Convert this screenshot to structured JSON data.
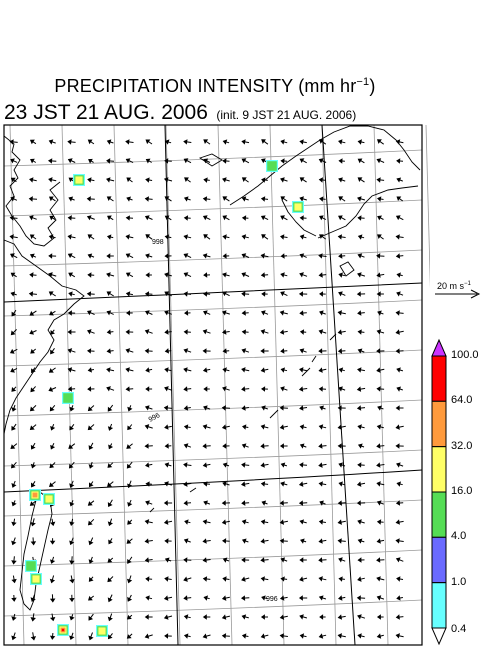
{
  "title": {
    "main": "PRECIPITATION INTENSITY (mm hr",
    "unit_sup": "−1",
    "close": ")"
  },
  "subtitle": {
    "valid_time": "23 JST 21 AUG. 2006",
    "init_time": "(init. 9 JST 21 AUG. 2006)"
  },
  "wind_reference": {
    "label": "20 m s",
    "unit_sup": "−1"
  },
  "colorbar": {
    "labels": [
      "100.0",
      "64.0",
      "32.0",
      "16.0",
      "4.0",
      "1.0",
      "0.4"
    ],
    "colors": [
      "#ff0000",
      "#ff9a3c",
      "#ffff66",
      "#55dd55",
      "#6a6aff",
      "#66ffff"
    ],
    "top_triangle_color": "#cc33ff",
    "bottom_triangle_color": "#ffffff"
  },
  "isobars": {
    "labels": [
      "998",
      "996",
      "996"
    ],
    "color": "#cc2277"
  }
}
